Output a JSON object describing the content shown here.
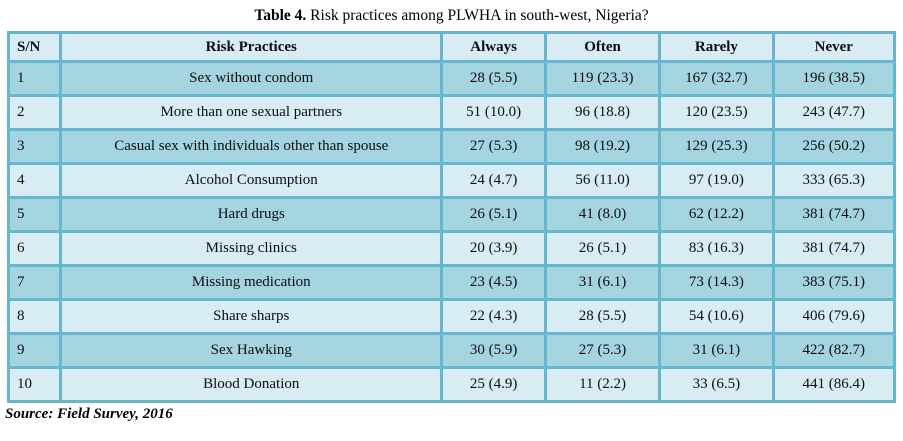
{
  "title": {
    "prefix": "Table 4.",
    "rest": " Risk practices among PLWHA in south-west, Nigeria?"
  },
  "source_note": "Source: Field Survey, 2016",
  "colors": {
    "table_border": "#66b7cd",
    "header_bg": "#d8ecf3",
    "row_odd_bg": "#a5d4e1",
    "row_even_bg": "#d8ecf3",
    "text": "#0d0d12"
  },
  "chart_data": {
    "type": "table",
    "title": "Table 4. Risk practices among PLWHA in south-west, Nigeria?",
    "headers": [
      "S/N",
      "Risk Practices",
      "Always",
      "Often",
      "Rarely",
      "Never"
    ],
    "rows": [
      [
        "1",
        "Sex without condom",
        "28 (5.5)",
        "119 (23.3)",
        "167 (32.7)",
        "196 (38.5)"
      ],
      [
        "2",
        "More than one sexual partners",
        "51 (10.0)",
        "96 (18.8)",
        "120 (23.5)",
        "243 (47.7)"
      ],
      [
        "3",
        "Casual sex with individuals other than spouse",
        "27 (5.3)",
        "98 (19.2)",
        "129 (25.3)",
        "256 (50.2)"
      ],
      [
        "4",
        "Alcohol Consumption",
        "24 (4.7)",
        "56 (11.0)",
        "97 (19.0)",
        "333 (65.3)"
      ],
      [
        "5",
        "Hard drugs",
        "26 (5.1)",
        "41 (8.0)",
        "62 (12.2)",
        "381 (74.7)"
      ],
      [
        "6",
        "Missing clinics",
        "20 (3.9)",
        "26 (5.1)",
        "83 (16.3)",
        "381 (74.7)"
      ],
      [
        "7",
        "Missing medication",
        "23 (4.5)",
        "31 (6.1)",
        "73 (14.3)",
        "383 (75.1)"
      ],
      [
        "8",
        "Share sharps",
        "22 (4.3)",
        "28 (5.5)",
        "54 (10.6)",
        "406 (79.6)"
      ],
      [
        "9",
        "Sex Hawking",
        "30 (5.9)",
        "27 (5.3)",
        "31 (6.1)",
        "422 (82.7)"
      ],
      [
        "10",
        "Blood Donation",
        "25 (4.9)",
        "11 (2.2)",
        "33 (6.5)",
        "441 (86.4)"
      ]
    ]
  }
}
